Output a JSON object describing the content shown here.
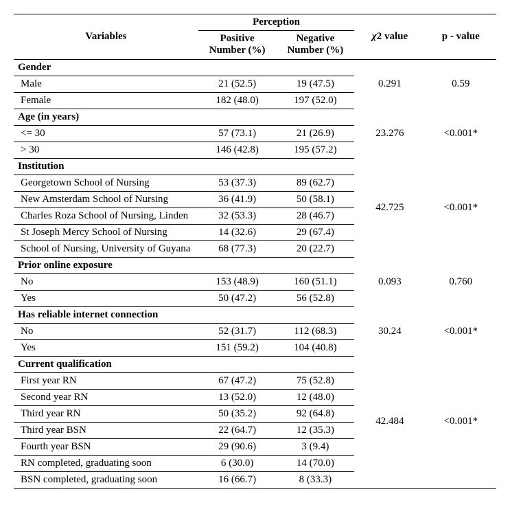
{
  "header": {
    "variables": "Variables",
    "perception": "Perception",
    "positive_l1": "Positive",
    "positive_l2": "Number (%)",
    "negative_l1": "Negative",
    "negative_l2": "Number (%)",
    "chi_prefix": "χ",
    "chi_suffix": "2 value",
    "p": "p - value"
  },
  "sections": [
    {
      "title": "Gender",
      "chi": "0.291",
      "p": "0.59",
      "rows": [
        {
          "label": "Male",
          "pos": "21 (52.5)",
          "neg": "19 (47.5)"
        },
        {
          "label": "Female",
          "pos": "182 (48.0)",
          "neg": "197 (52.0)"
        }
      ]
    },
    {
      "title": "Age (in years)",
      "chi": "23.276",
      "p": "<0.001*",
      "rows": [
        {
          "label": "<= 30",
          "pos": "57 (73.1)",
          "neg": "21 (26.9)"
        },
        {
          "label": "> 30",
          "pos": "146 (42.8)",
          "neg": "195 (57.2)"
        }
      ]
    },
    {
      "title": "Institution",
      "chi": "42.725",
      "p": "<0.001*",
      "rows": [
        {
          "label": "Georgetown School of Nursing",
          "pos": "53 (37.3)",
          "neg": "89 (62.7)"
        },
        {
          "label": "New Amsterdam School of Nursing",
          "pos": "36 (41.9)",
          "neg": "50 (58.1)"
        },
        {
          "label": "Charles Roza School of Nursing, Linden",
          "pos": "32 (53.3)",
          "neg": "28 (46.7)"
        },
        {
          "label": "St Joseph Mercy School of Nursing",
          "pos": "14 (32.6)",
          "neg": "29 (67.4)"
        },
        {
          "label": "School of Nursing, University of Guyana",
          "pos": "68 (77.3)",
          "neg": "20 (22.7)"
        }
      ]
    },
    {
      "title": "Prior online exposure",
      "chi": "0.093",
      "p": "0.760",
      "rows": [
        {
          "label": "No",
          "pos": "153 (48.9)",
          "neg": "160 (51.1)"
        },
        {
          "label": "Yes",
          "pos": "50 (47.2)",
          "neg": "56 (52.8)"
        }
      ]
    },
    {
      "title": "Has reliable internet connection",
      "chi": "30.24",
      "p": "<0.001*",
      "rows": [
        {
          "label": "No",
          "pos": "52 (31.7)",
          "neg": "112 (68.3)"
        },
        {
          "label": "Yes",
          "pos": "151 (59.2)",
          "neg": "104 (40.8)"
        }
      ]
    },
    {
      "title": "Current qualification",
      "chi": "42.484",
      "p": "<0.001*",
      "rows": [
        {
          "label": "First year RN",
          "pos": "67 (47.2)",
          "neg": "75 (52.8)"
        },
        {
          "label": "Second year RN",
          "pos": "13 (52.0)",
          "neg": "12 (48.0)"
        },
        {
          "label": "Third year RN",
          "pos": "50 (35.2)",
          "neg": "92 (64.8)"
        },
        {
          "label": "Third year BSN",
          "pos": "22 (64.7)",
          "neg": "12 (35.3)"
        },
        {
          "label": "Fourth year BSN",
          "pos": "29 (90.6)",
          "neg": "3 (9.4)"
        },
        {
          "label": "RN completed, graduating soon",
          "pos": "6 (30.0)",
          "neg": "14 (70.0)"
        },
        {
          "label": "BSN completed, graduating soon",
          "pos": "16 (66.7)",
          "neg": "8 (33.3)"
        }
      ]
    }
  ]
}
